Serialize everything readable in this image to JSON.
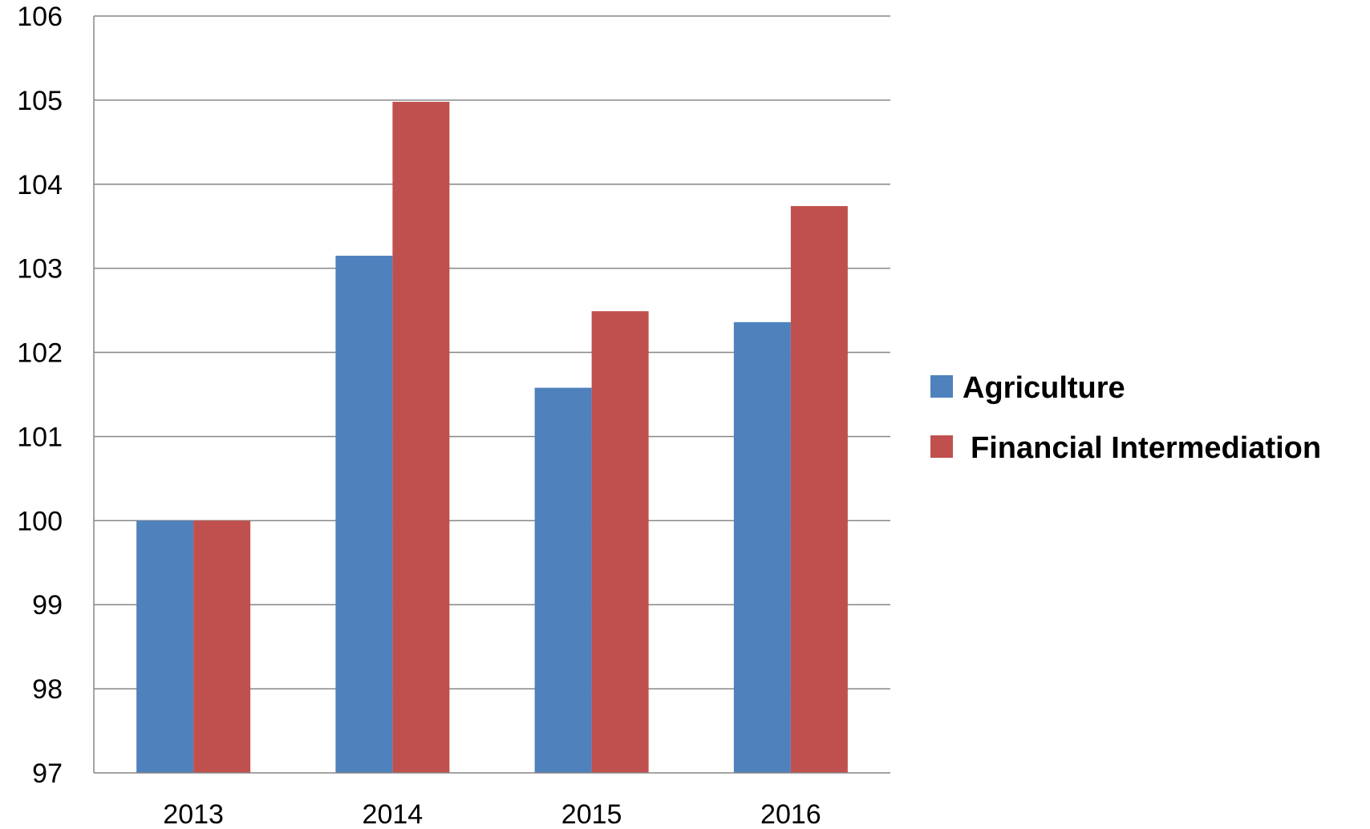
{
  "chart_data": {
    "type": "bar",
    "title": "",
    "xlabel": "",
    "ylabel": "",
    "categories": [
      "2013",
      "2014",
      "2015",
      "2016"
    ],
    "series": [
      {
        "name": "Agriculture",
        "values": [
          100,
          103.15,
          101.58,
          102.36
        ],
        "color": "#4F81BD"
      },
      {
        "name": "Financial Intermediation",
        "values": [
          100,
          104.98,
          102.49,
          103.74
        ],
        "color": "#C0504D"
      }
    ],
    "ylim": [
      97,
      106
    ],
    "yticks": [
      97,
      98,
      99,
      100,
      101,
      102,
      103,
      104,
      105,
      106
    ],
    "grid": true,
    "legend_position": "right"
  }
}
